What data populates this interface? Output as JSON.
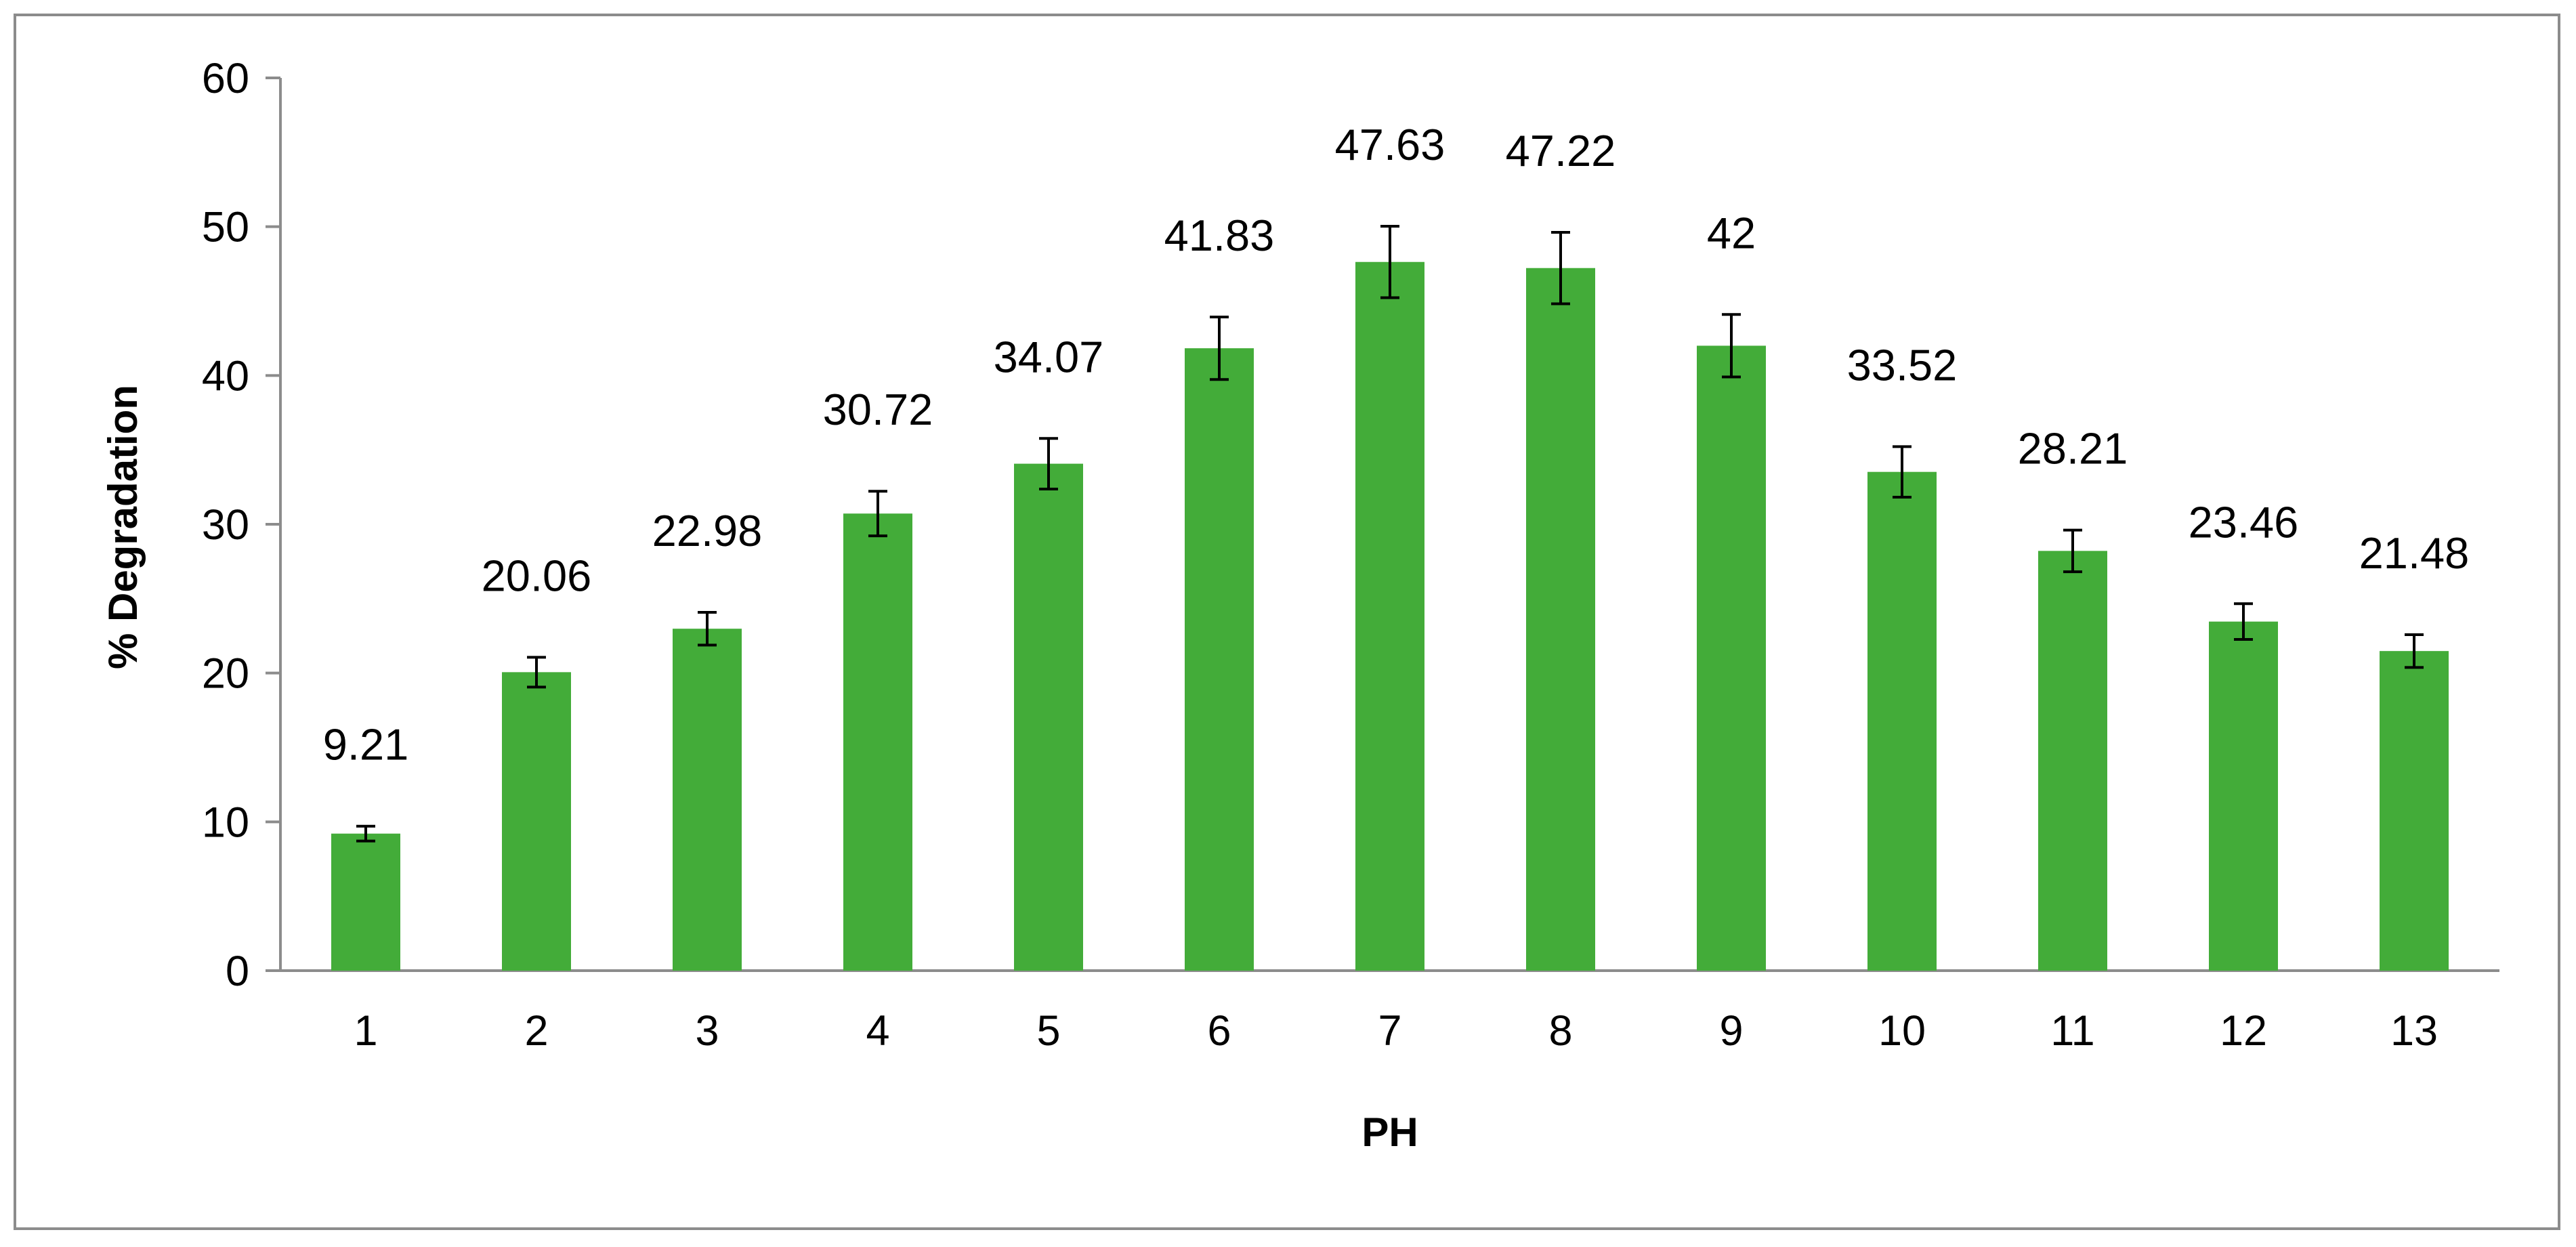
{
  "chart_data": {
    "type": "bar",
    "title": "",
    "xlabel": "PH",
    "ylabel": "% Degradation",
    "categories": [
      "1",
      "2",
      "3",
      "4",
      "5",
      "6",
      "7",
      "8",
      "9",
      "10",
      "11",
      "12",
      "13"
    ],
    "values": [
      9.21,
      20.06,
      22.98,
      30.72,
      34.07,
      41.83,
      47.63,
      47.22,
      42,
      33.52,
      28.21,
      23.46,
      21.48
    ],
    "data_labels": [
      "9.21",
      "20.06",
      "22.98",
      "30.72",
      "34.07",
      "41.83",
      "47.63",
      "47.22",
      "42",
      "33.52",
      "28.21",
      "23.46",
      "21.48"
    ],
    "error": [
      0.5,
      1.0,
      1.1,
      1.5,
      1.7,
      2.1,
      2.4,
      2.4,
      2.1,
      1.7,
      1.4,
      1.2,
      1.1
    ],
    "ylim": [
      0,
      60
    ],
    "yticks": [
      0,
      10,
      20,
      30,
      40,
      50,
      60
    ],
    "ytick_labels": [
      "0",
      "10",
      "20",
      "30",
      "40",
      "50",
      "60"
    ],
    "grid": false,
    "legend": "none",
    "bar_color": "#43ac39",
    "error_bar_color": "#000000",
    "axis_color": "#8c8c8c"
  }
}
